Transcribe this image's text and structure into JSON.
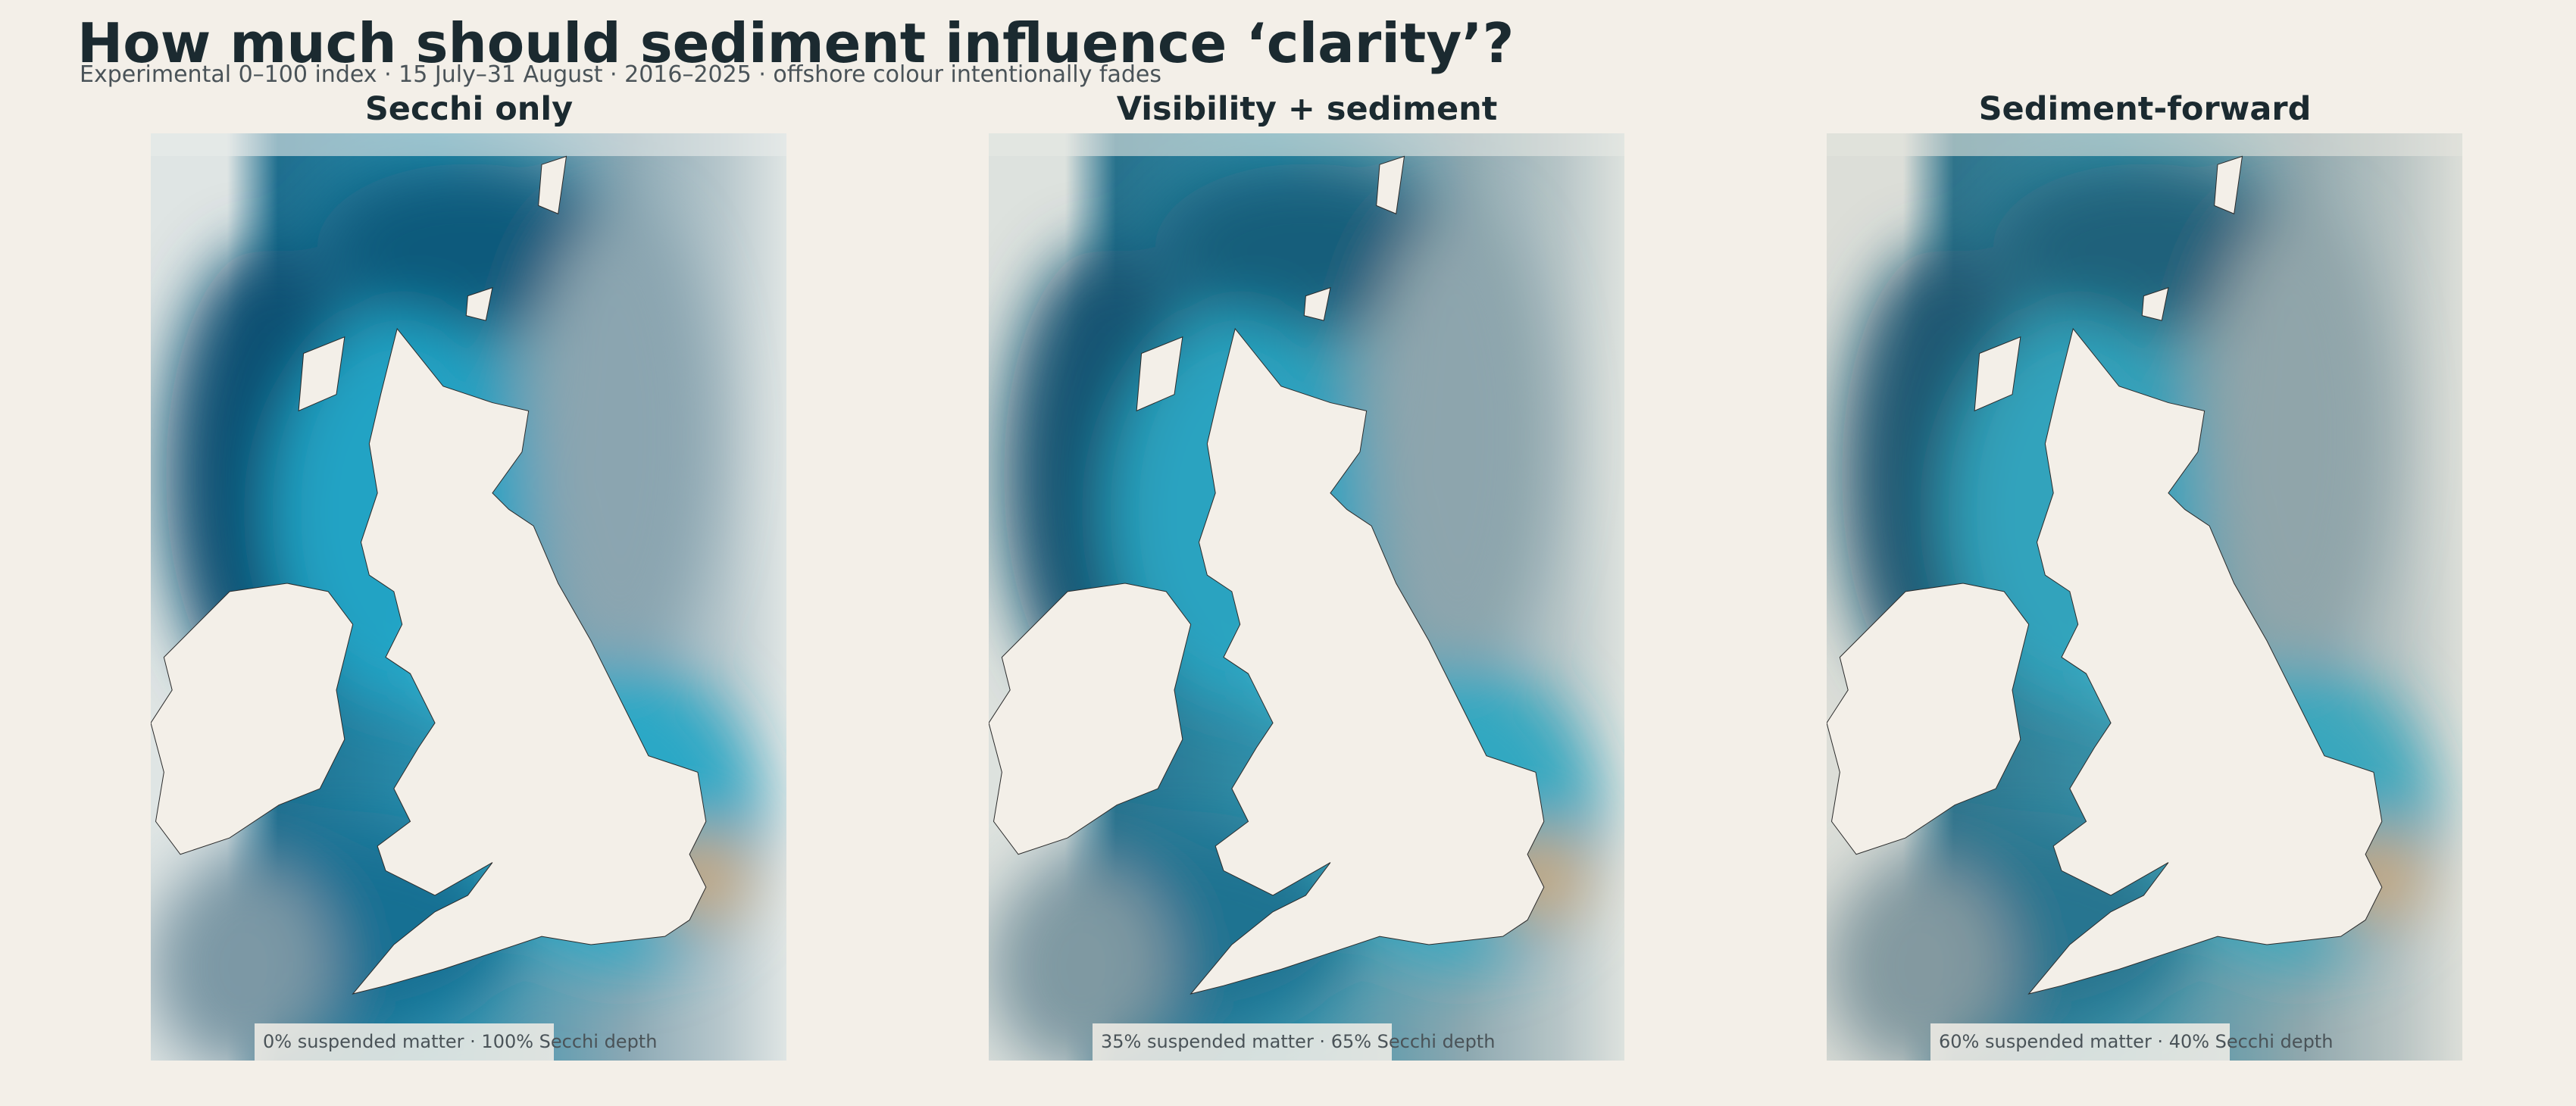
{
  "header": {
    "title": "How much should sediment influence ‘clarity’?",
    "subtitle": "Experimental 0–100 index · 15 July–31 August · 2016–2025 · offshore colour intentionally fades"
  },
  "panels": [
    {
      "title": "Secchi only",
      "caption": "0% suspended matter · 100% Secchi depth"
    },
    {
      "title": "Visibility + sediment",
      "caption": "35% suspended matter · 65% Secchi depth"
    },
    {
      "title": "Sediment-forward",
      "caption": "60% suspended matter · 40% Secchi depth"
    }
  ]
}
